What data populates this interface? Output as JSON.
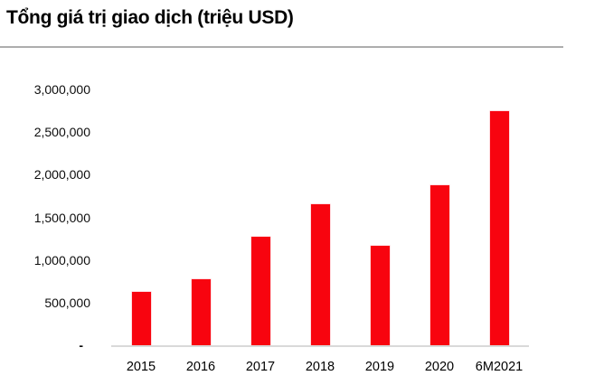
{
  "chart_data": {
    "type": "bar",
    "title": "Tổng giá trị giao dịch (triệu USD)",
    "categories": [
      "2015",
      "2016",
      "2017",
      "2018",
      "2019",
      "2020",
      "6M2021"
    ],
    "values": [
      630000,
      770000,
      1270000,
      1650000,
      1165000,
      1875000,
      2750000
    ],
    "xlabel": "",
    "ylabel": "",
    "ylim": [
      0,
      3000000
    ],
    "ytick_step": 500000,
    "ytick_labels_top_to_bottom": [
      "3,000,000",
      "2,500,000",
      "2,000,000",
      "1,500,000",
      "1,000,000",
      "500,000",
      "-"
    ],
    "grid": false,
    "legend": null,
    "bar_color": "#f8040f",
    "axis_line_color": "#d9d9d9",
    "divider_color": "#adadad",
    "text_color": "#000000"
  }
}
